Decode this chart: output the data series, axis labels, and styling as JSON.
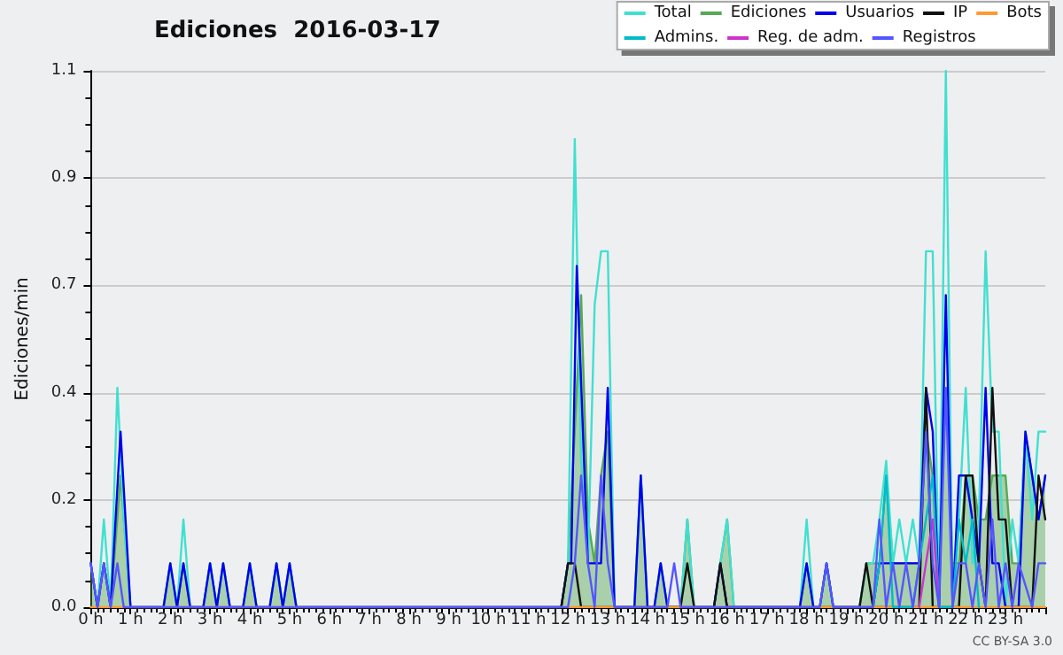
{
  "chart_data": {
    "type": "line",
    "title": "Ediciones  2016-03-17",
    "ylabel": "Ediciones/min",
    "annotations": [
      "CC BY-SA 3.0"
    ],
    "xlim": [
      0,
      24
    ],
    "xticks": [
      {
        "value": 0,
        "label": "0 h"
      },
      {
        "value": 1,
        "label": "1 h"
      },
      {
        "value": 2,
        "label": "2 h"
      },
      {
        "value": 3,
        "label": "3 h"
      },
      {
        "value": 4,
        "label": "4 h"
      },
      {
        "value": 5,
        "label": "5 h"
      },
      {
        "value": 6,
        "label": "6 h"
      },
      {
        "value": 7,
        "label": "7 h"
      },
      {
        "value": 8,
        "label": "8 h"
      },
      {
        "value": 9,
        "label": "9 h"
      },
      {
        "value": 10,
        "label": "10 h"
      },
      {
        "value": 11,
        "label": "11 h"
      },
      {
        "value": 12,
        "label": "12 h"
      },
      {
        "value": 13,
        "label": "13 h"
      },
      {
        "value": 14,
        "label": "14 h"
      },
      {
        "value": 15,
        "label": "15 h"
      },
      {
        "value": 16,
        "label": "16 h"
      },
      {
        "value": 17,
        "label": "17 h"
      },
      {
        "value": 18,
        "label": "18 h"
      },
      {
        "value": 19,
        "label": "19 h"
      },
      {
        "value": 20,
        "label": "20 h"
      },
      {
        "value": 21,
        "label": "21 h"
      },
      {
        "value": 22,
        "label": "22 h"
      },
      {
        "value": 23,
        "label": "23 h"
      },
      {
        "value": 24,
        "label": null
      }
    ],
    "ylim": [
      0,
      1.1
    ],
    "yticks": [
      {
        "value": 0,
        "label": "0.0"
      },
      {
        "value": 0.22,
        "label": "0.2"
      },
      {
        "value": 0.44,
        "label": "0.4"
      },
      {
        "value": 0.66,
        "label": "0.7"
      },
      {
        "value": 0.88,
        "label": "0.9"
      },
      {
        "value": 1.1,
        "label": "1.1"
      }
    ],
    "grid": "y",
    "legend": "top right",
    "marker": "none",
    "line_style": "solid",
    "series": [
      {
        "name": "Total",
        "color": "#40e0d0",
        "x": [
          0,
          0.17,
          0.33,
          0.5,
          0.67,
          0.83,
          1.0,
          1.83,
          2.0,
          2.17,
          2.33,
          2.5,
          2.83,
          3.0,
          3.17,
          3.33,
          3.5,
          3.83,
          4.0,
          4.17,
          4.5,
          4.67,
          4.83,
          5.0,
          5.17,
          11.83,
          12.0,
          12.17,
          12.33,
          12.5,
          12.67,
          12.83,
          13.0,
          13.17,
          13.67,
          13.83,
          14.0,
          14.17,
          14.33,
          14.5,
          14.83,
          15.0,
          15.17,
          15.67,
          15.83,
          16.0,
          16.17,
          17.83,
          18.0,
          18.17,
          18.33,
          18.5,
          18.67,
          19.33,
          19.5,
          19.67,
          19.83,
          20.0,
          20.17,
          20.33,
          20.5,
          20.67,
          20.83,
          21.0,
          21.17,
          21.33,
          21.5,
          21.67,
          21.83,
          22.0,
          22.17,
          22.33,
          22.5,
          22.67,
          22.83,
          23.0,
          23.17,
          23.33,
          23.5,
          23.67,
          23.83,
          24.0
        ],
        "values": [
          0.09,
          0,
          0.18,
          0,
          0.45,
          0.18,
          0,
          0,
          0.09,
          0,
          0.18,
          0,
          0,
          0.09,
          0,
          0.09,
          0,
          0,
          0.09,
          0,
          0,
          0.09,
          0,
          0.09,
          0,
          0,
          0.09,
          0.96,
          0.3,
          0.09,
          0.62,
          0.73,
          0.73,
          0,
          0,
          0.27,
          0,
          0,
          0.09,
          0,
          0,
          0.18,
          0,
          0,
          0.09,
          0.18,
          0,
          0,
          0.18,
          0,
          0,
          0.09,
          0,
          0,
          0.09,
          0.09,
          0.18,
          0.3,
          0.09,
          0.18,
          0.09,
          0.18,
          0.09,
          0.73,
          0.73,
          0,
          1.1,
          0,
          0.18,
          0.45,
          0.09,
          0.18,
          0.73,
          0.36,
          0.36,
          0,
          0.18,
          0.09,
          0.36,
          0.18,
          0.36,
          0.36
        ]
      },
      {
        "name": "Ediciones",
        "type": "area",
        "color": "#55aa55",
        "x": [
          0,
          0.17,
          0.33,
          0.5,
          0.75,
          1.0,
          1.83,
          2.0,
          2.17,
          2.33,
          2.5,
          2.67,
          2.83,
          3.0,
          3.17,
          3.33,
          3.5,
          3.83,
          4.0,
          4.17,
          4.5,
          4.67,
          4.83,
          5.0,
          5.17,
          11.83,
          12.0,
          12.17,
          12.33,
          12.5,
          12.67,
          12.83,
          13.0,
          13.17,
          13.67,
          13.83,
          14.0,
          14.17,
          14.33,
          14.5,
          14.67,
          14.83,
          15.0,
          15.17,
          15.67,
          15.83,
          16.0,
          16.17,
          17.83,
          18.0,
          18.17,
          18.33,
          18.5,
          18.67,
          19.33,
          19.5,
          19.67,
          19.83,
          20.0,
          20.17,
          20.33,
          20.5,
          20.67,
          20.83,
          21.0,
          21.17,
          21.33,
          21.5,
          21.67,
          21.83,
          22.0,
          22.17,
          22.33,
          22.5,
          22.67,
          22.83,
          23.0,
          23.17,
          23.33,
          23.5,
          23.67,
          23.83,
          24.0
        ],
        "values": [
          0.09,
          0,
          0.09,
          0,
          0.27,
          0,
          0,
          0.09,
          0,
          0.09,
          0,
          0,
          0,
          0.09,
          0,
          0.09,
          0,
          0,
          0.09,
          0,
          0,
          0.09,
          0,
          0.09,
          0,
          0,
          0.09,
          0.36,
          0.64,
          0.18,
          0.09,
          0.27,
          0.36,
          0,
          0,
          0.27,
          0,
          0,
          0.09,
          0,
          0,
          0,
          0.18,
          0,
          0,
          0.09,
          0.18,
          0,
          0,
          0.09,
          0,
          0,
          0.09,
          0,
          0,
          0.09,
          0.09,
          0.09,
          0.27,
          0.09,
          0.09,
          0.09,
          0.09,
          0.09,
          0.36,
          0.27,
          0.09,
          0.45,
          0.09,
          0.09,
          0.27,
          0.27,
          0.18,
          0.18,
          0.27,
          0.27,
          0.27,
          0.09,
          0.09,
          0.36,
          0.27,
          0.18,
          0.27
        ]
      },
      {
        "name": "Usuarios",
        "color": "#0000ee",
        "x": [
          0,
          0.17,
          0.33,
          0.5,
          0.75,
          1.0,
          1.83,
          2.0,
          2.17,
          2.33,
          2.5,
          2.67,
          2.83,
          3.0,
          3.17,
          3.33,
          3.5,
          3.83,
          4.0,
          4.17,
          4.5,
          4.67,
          4.83,
          5.0,
          5.17,
          11.83,
          12.0,
          12.08,
          12.22,
          12.5,
          12.67,
          12.83,
          13.0,
          13.17,
          13.67,
          13.83,
          14.0,
          14.17,
          14.33,
          14.5,
          15.67,
          15.83,
          16.0,
          17.83,
          18.0,
          18.17,
          18.33,
          18.5,
          18.67,
          19.67,
          19.83,
          20.0,
          20.17,
          20.83,
          21.0,
          21.17,
          21.33,
          21.5,
          21.67,
          21.83,
          22.0,
          22.17,
          22.33,
          22.5,
          22.67,
          22.83,
          23.0,
          23.17,
          23.33,
          23.5,
          23.67,
          23.83,
          24.0
        ],
        "values": [
          0.09,
          0,
          0.09,
          0,
          0.36,
          0,
          0,
          0.09,
          0,
          0.09,
          0,
          0,
          0,
          0.09,
          0,
          0.09,
          0,
          0,
          0.09,
          0,
          0,
          0.09,
          0,
          0.09,
          0,
          0,
          0.09,
          0.09,
          0.7,
          0.09,
          0.09,
          0.09,
          0.45,
          0,
          0,
          0.27,
          0,
          0,
          0.09,
          0,
          0,
          0.09,
          0,
          0,
          0.09,
          0,
          0,
          0.09,
          0,
          0,
          0.09,
          0.09,
          0.09,
          0.09,
          0.45,
          0.36,
          0,
          0.64,
          0,
          0.27,
          0.27,
          0.18,
          0.09,
          0.45,
          0.09,
          0.09,
          0,
          0,
          0,
          0.36,
          0.27,
          0.18,
          0.27
        ]
      },
      {
        "name": "IP",
        "color": "#111111",
        "x": [
          11.83,
          12.0,
          12.17,
          12.33,
          14.83,
          15.0,
          15.17,
          15.67,
          15.83,
          16.0,
          19.33,
          19.5,
          19.67,
          20.83,
          21.0,
          21.17,
          21.83,
          22.0,
          22.17,
          22.33,
          22.5,
          22.67,
          22.83,
          23.0,
          23.17,
          23.67,
          23.83,
          24.0
        ],
        "values": [
          0,
          0.09,
          0.09,
          0,
          0,
          0.09,
          0,
          0,
          0.09,
          0,
          0,
          0.09,
          0,
          0,
          0.45,
          0,
          0,
          0.27,
          0.27,
          0.09,
          0,
          0.45,
          0.18,
          0.18,
          0,
          0,
          0.27,
          0.18
        ]
      },
      {
        "name": "Bots",
        "color": "#ff9933",
        "x": [
          0,
          24
        ],
        "values": [
          0,
          0
        ]
      },
      {
        "name": "Admins.",
        "color": "#00bbcc",
        "x": [
          19.67,
          19.83,
          20.0,
          20.17,
          20.67,
          20.83,
          21.0,
          21.17,
          21.33,
          21.67,
          21.83,
          22.0,
          22.17,
          22.33
        ],
        "values": [
          0,
          0.09,
          0.27,
          0,
          0,
          0.09,
          0.18,
          0.27,
          0,
          0,
          0.18,
          0.09,
          0.18,
          0
        ]
      },
      {
        "name": "Reg. de adm.",
        "color": "#cc33cc",
        "x": [
          20.83,
          21.0,
          21.17,
          21.33
        ],
        "values": [
          0,
          0.09,
          0.18,
          0
        ]
      },
      {
        "name": "Registros",
        "color": "#5555ff",
        "x": [
          0,
          0.17,
          0.33,
          0.5,
          0.67,
          0.83,
          1.0,
          12.0,
          12.17,
          12.33,
          12.5,
          12.67,
          12.83,
          13.0,
          13.17,
          14.5,
          14.67,
          14.83,
          18.33,
          18.5,
          18.67,
          19.67,
          19.83,
          20.0,
          20.17,
          20.33,
          20.5,
          20.67,
          20.83,
          21.0,
          21.17,
          21.33,
          21.5,
          21.67,
          21.83,
          22.0,
          22.17,
          22.33,
          22.5,
          22.67,
          22.83,
          23.0,
          23.17,
          23.33,
          23.67,
          23.83,
          24.0
        ],
        "values": [
          0.09,
          0,
          0.09,
          0,
          0.09,
          0,
          0,
          0,
          0.09,
          0.27,
          0.09,
          0,
          0.27,
          0.09,
          0,
          0,
          0.09,
          0,
          0,
          0.09,
          0,
          0,
          0.18,
          0,
          0.09,
          0,
          0.09,
          0,
          0.09,
          0.36,
          0.09,
          0,
          0.45,
          0,
          0.09,
          0.09,
          0,
          0.09,
          0,
          0.18,
          0,
          0.09,
          0,
          0.09,
          0,
          0.09,
          0.09
        ]
      }
    ]
  }
}
